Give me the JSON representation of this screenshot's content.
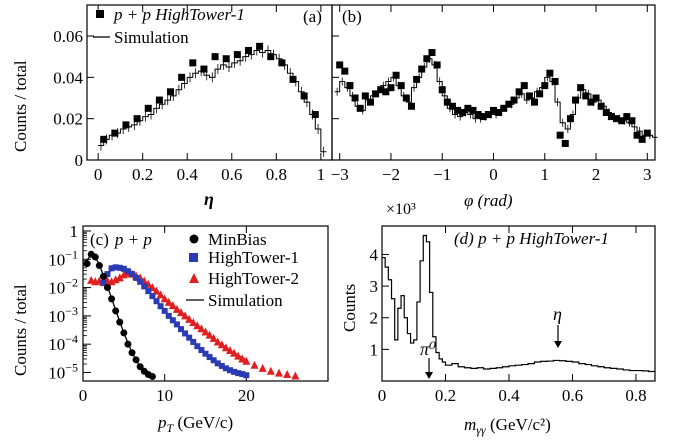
{
  "chart_data": [
    {
      "panel": "(a)",
      "type": "scatter",
      "xlabel": "η",
      "ylabel": "Counts / total",
      "xlim": [
        -0.05,
        1.05
      ],
      "ylim": [
        0,
        0.075
      ],
      "xticks": [
        0,
        0.2,
        0.4,
        0.6,
        0.8,
        1
      ],
      "xtick_labels": [
        "0",
        "0.2",
        "0.4",
        "0.6",
        "0.8",
        "1"
      ],
      "yticks": [
        0,
        0.02,
        0.04,
        0.06
      ],
      "ytick_labels": [
        "0",
        "0.02",
        "0.04",
        "0.06"
      ],
      "legend": [
        {
          "label": "p + p HighTower-1",
          "marker": "square"
        },
        {
          "label": "Simulation",
          "marker": "line"
        }
      ],
      "series": [
        {
          "name": "p + p HighTower-1",
          "style": "square",
          "x": [
            0.025,
            0.075,
            0.125,
            0.175,
            0.225,
            0.275,
            0.325,
            0.375,
            0.425,
            0.475,
            0.525,
            0.575,
            0.625,
            0.675,
            0.725,
            0.775,
            0.825,
            0.875,
            0.925,
            0.975
          ],
          "y": [
            0.01,
            0.013,
            0.017,
            0.02,
            0.025,
            0.029,
            0.033,
            0.04,
            0.047,
            0.044,
            0.05,
            0.049,
            0.051,
            0.053,
            0.055,
            0.05,
            0.047,
            0.039,
            0.031,
            0.022
          ]
        },
        {
          "name": "Simulation",
          "style": "histogram",
          "x": [
            0.0,
            0.025,
            0.05,
            0.075,
            0.1,
            0.125,
            0.15,
            0.175,
            0.2,
            0.225,
            0.25,
            0.275,
            0.3,
            0.325,
            0.35,
            0.375,
            0.4,
            0.425,
            0.45,
            0.475,
            0.5,
            0.525,
            0.55,
            0.575,
            0.6,
            0.625,
            0.65,
            0.675,
            0.7,
            0.725,
            0.75,
            0.775,
            0.8,
            0.825,
            0.85,
            0.875,
            0.9,
            0.925,
            0.95,
            0.975,
            1.0
          ],
          "y": [
            0.007,
            0.01,
            0.012,
            0.013,
            0.015,
            0.016,
            0.017,
            0.019,
            0.021,
            0.022,
            0.025,
            0.027,
            0.029,
            0.031,
            0.034,
            0.037,
            0.04,
            0.042,
            0.043,
            0.041,
            0.04,
            0.044,
            0.046,
            0.045,
            0.047,
            0.048,
            0.05,
            0.051,
            0.053,
            0.052,
            0.053,
            0.051,
            0.049,
            0.046,
            0.042,
            0.038,
            0.033,
            0.028,
            0.022,
            0.015,
            0.004
          ]
        }
      ],
      "annotations": [
        "(a)"
      ]
    },
    {
      "panel": "(b)",
      "type": "scatter",
      "xlabel": "φ (rad)",
      "xlim": [
        -3.15,
        3.15
      ],
      "ylim": [
        0,
        0.075
      ],
      "xticks": [
        -3,
        -2,
        -1,
        0,
        1,
        2,
        3
      ],
      "xtick_labels": [
        "−3",
        "−2",
        "−1",
        "0",
        "1",
        "2",
        "3"
      ],
      "series": [
        {
          "name": "p + p HighTower-1",
          "style": "square",
          "x": [
            -3.0,
            -2.9,
            -2.8,
            -2.7,
            -2.6,
            -2.5,
            -2.4,
            -2.3,
            -2.2,
            -2.1,
            -2.0,
            -1.9,
            -1.8,
            -1.7,
            -1.6,
            -1.5,
            -1.4,
            -1.3,
            -1.2,
            -1.1,
            -1.0,
            -0.9,
            -0.8,
            -0.7,
            -0.6,
            -0.5,
            -0.4,
            -0.3,
            -0.2,
            -0.1,
            0.0,
            0.1,
            0.2,
            0.3,
            0.4,
            0.5,
            0.6,
            0.7,
            0.8,
            0.9,
            1.0,
            1.1,
            1.2,
            1.3,
            1.4,
            1.5,
            1.6,
            1.7,
            1.8,
            1.9,
            2.0,
            2.1,
            2.2,
            2.3,
            2.4,
            2.5,
            2.6,
            2.7,
            2.8,
            2.9,
            3.0
          ],
          "y": [
            0.046,
            0.043,
            0.036,
            0.03,
            0.025,
            0.031,
            0.028,
            0.032,
            0.034,
            0.033,
            0.035,
            0.041,
            0.036,
            0.03,
            0.026,
            0.039,
            0.044,
            0.049,
            0.052,
            0.046,
            0.034,
            0.028,
            0.026,
            0.024,
            0.023,
            0.025,
            0.024,
            0.022,
            0.021,
            0.022,
            0.024,
            0.023,
            0.025,
            0.027,
            0.029,
            0.033,
            0.036,
            0.031,
            0.028,
            0.032,
            0.036,
            0.042,
            0.038,
            0.012,
            0.008,
            0.02,
            0.029,
            0.035,
            0.031,
            0.028,
            0.03,
            0.026,
            0.023,
            0.021,
            0.02,
            0.019,
            0.021,
            0.019,
            0.012,
            0.01,
            0.013
          ]
        },
        {
          "name": "Simulation",
          "style": "histogram",
          "x": [
            -3.1,
            -3.0,
            -2.9,
            -2.8,
            -2.7,
            -2.6,
            -2.5,
            -2.4,
            -2.3,
            -2.2,
            -2.1,
            -2.0,
            -1.9,
            -1.8,
            -1.7,
            -1.6,
            -1.5,
            -1.4,
            -1.3,
            -1.2,
            -1.1,
            -1.0,
            -0.9,
            -0.8,
            -0.7,
            -0.6,
            -0.5,
            -0.4,
            -0.3,
            -0.2,
            -0.1,
            0.0,
            0.1,
            0.2,
            0.3,
            0.4,
            0.5,
            0.6,
            0.7,
            0.8,
            0.9,
            1.0,
            1.1,
            1.2,
            1.3,
            1.4,
            1.5,
            1.6,
            1.7,
            1.8,
            1.9,
            2.0,
            2.1,
            2.2,
            2.3,
            2.4,
            2.5,
            2.6,
            2.7,
            2.8,
            2.9,
            3.0,
            3.1
          ],
          "y": [
            0.033,
            0.038,
            0.035,
            0.031,
            0.026,
            0.024,
            0.029,
            0.031,
            0.033,
            0.036,
            0.038,
            0.04,
            0.036,
            0.031,
            0.028,
            0.035,
            0.04,
            0.045,
            0.049,
            0.046,
            0.038,
            0.031,
            0.025,
            0.022,
            0.021,
            0.023,
            0.022,
            0.02,
            0.02,
            0.021,
            0.022,
            0.022,
            0.024,
            0.026,
            0.027,
            0.03,
            0.032,
            0.029,
            0.03,
            0.033,
            0.035,
            0.04,
            0.038,
            0.028,
            0.018,
            0.015,
            0.022,
            0.03,
            0.034,
            0.032,
            0.028,
            0.029,
            0.026,
            0.023,
            0.021,
            0.02,
            0.019,
            0.018,
            0.016,
            0.014,
            0.012,
            0.012,
            0.011
          ]
        }
      ],
      "annotations": [
        "(b)"
      ]
    },
    {
      "panel": "(c)",
      "type": "scatter",
      "log_y": true,
      "xlabel": "p_T (GeV/c)",
      "ylabel": "Counts / total",
      "xlim": [
        0,
        30
      ],
      "ylim": [
        5e-06,
        1.5
      ],
      "xticks": [
        0,
        10,
        20
      ],
      "xtick_labels": [
        "0",
        "10",
        "20"
      ],
      "yticks": [
        1e-05,
        0.0001,
        0.001,
        0.01,
        0.1,
        1
      ],
      "ytick_labels": [
        "10⁻⁵",
        "10⁻⁴",
        "10⁻³",
        "10⁻²",
        "10⁻¹",
        "1"
      ],
      "legend_placement": "top-right",
      "legend": [
        {
          "label": "MinBias",
          "marker": "circle",
          "color": "#000000"
        },
        {
          "label": "HighTower-1",
          "marker": "square",
          "color": "#2b3bb3"
        },
        {
          "label": "HighTower-2",
          "marker": "triangle",
          "color": "#e02020"
        },
        {
          "label": "Simulation",
          "marker": "line",
          "color": "#000000"
        }
      ],
      "series": [
        {
          "name": "MinBias",
          "style": "circle",
          "color": "#000000",
          "x": [
            0.5,
            1.0,
            1.5,
            2.0,
            2.5,
            3.0,
            3.5,
            4.0,
            4.5,
            5.0,
            5.5,
            6.0,
            6.5,
            7.0,
            7.5,
            8.0,
            8.5
          ],
          "y": [
            0.07,
            0.15,
            0.12,
            0.06,
            0.025,
            0.01,
            0.004,
            0.0015,
            0.0006,
            0.00025,
            0.0001,
            5e-05,
            2.8e-05,
            1.6e-05,
            1.1e-05,
            8.5e-06,
            7.2e-06
          ]
        },
        {
          "name": "HighTower-1",
          "style": "square",
          "color": "#2b3bb3",
          "x": [
            2.5,
            3.0,
            3.5,
            4.0,
            4.5,
            5.0,
            5.5,
            6.0,
            6.5,
            7.0,
            7.5,
            8.0,
            8.5,
            9.0,
            9.5,
            10.0,
            10.5,
            11.0,
            11.5,
            12.0,
            12.5,
            13.0,
            13.5,
            14.0,
            14.5,
            15.0,
            15.5,
            16.0,
            16.5,
            17.0,
            17.5,
            18.0,
            18.5,
            19.0,
            19.5,
            20.0
          ],
          "y": [
            0.015,
            0.03,
            0.048,
            0.052,
            0.05,
            0.046,
            0.038,
            0.03,
            0.022,
            0.016,
            0.011,
            0.0075,
            0.005,
            0.0033,
            0.0022,
            0.0015,
            0.001,
            0.0007,
            0.0005,
            0.00034,
            0.00024,
            0.00017,
            0.00012,
            8.5e-05,
            6.2e-05,
            4.6e-05,
            3.5e-05,
            2.7e-05,
            2.1e-05,
            1.7e-05,
            1.4e-05,
            1.2e-05,
            1.05e-05,
            9.5e-06,
            8.8e-06,
            8e-06
          ]
        },
        {
          "name": "HighTower-2",
          "style": "triangle",
          "color": "#e02020",
          "x": [
            1.0,
            1.5,
            2.0,
            2.5,
            3.0,
            3.5,
            4.0,
            4.5,
            5.0,
            5.5,
            6.0,
            6.5,
            7.0,
            7.5,
            8.0,
            8.5,
            9.0,
            9.5,
            10.0,
            10.5,
            11.0,
            11.5,
            12.0,
            12.5,
            13.0,
            13.5,
            14.0,
            14.5,
            15.0,
            15.5,
            16.0,
            16.5,
            17.0,
            17.5,
            18.0,
            18.5,
            19.0,
            19.5,
            20.0,
            21.0,
            22.0,
            23.0,
            24.0,
            25.0,
            26.0
          ],
          "y": [
            0.018,
            0.016,
            0.017,
            0.015,
            0.017,
            0.016,
            0.019,
            0.022,
            0.028,
            0.032,
            0.03,
            0.026,
            0.022,
            0.017,
            0.013,
            0.01,
            0.0075,
            0.0055,
            0.004,
            0.003,
            0.0023,
            0.0017,
            0.0013,
            0.001,
            0.00075,
            0.00058,
            0.00045,
            0.00035,
            0.00027,
            0.00021,
            0.00016,
            0.00012,
            9.5e-05,
            7.5e-05,
            6e-05,
            4.8e-05,
            3.8e-05,
            3e-05,
            2.5e-05,
            1.8e-05,
            1.4e-05,
            1.1e-05,
            9.5e-06,
            8.5e-06,
            7.5e-06
          ]
        }
      ],
      "simulation_curves": [
        {
          "name": "Simulation (MinBias)",
          "color": "#000000",
          "x": [
            0.5,
            1,
            1.5,
            2,
            3,
            4,
            5,
            6,
            7,
            8
          ],
          "y": [
            0.09,
            0.16,
            0.12,
            0.065,
            0.011,
            0.0016,
            0.00025,
            5e-05,
            1.6e-05,
            8e-06
          ]
        },
        {
          "name": "Simulation (HighTower-1)",
          "color": "#2b3bb3",
          "x": [
            2.5,
            3,
            4,
            5,
            6,
            8,
            10,
            12,
            14,
            16,
            18,
            20
          ],
          "y": [
            0.012,
            0.03,
            0.055,
            0.048,
            0.031,
            0.008,
            0.0016,
            0.00035,
            8.5e-05,
            2.7e-05,
            1.2e-05,
            7.8e-06
          ]
        },
        {
          "name": "Simulation (HighTower-2)",
          "color": "#e02020",
          "x": [
            3,
            4,
            5,
            5.5,
            6,
            8,
            10,
            12,
            14,
            16,
            18,
            20
          ],
          "y": [
            0.01,
            0.018,
            0.03,
            0.034,
            0.032,
            0.014,
            0.0042,
            0.0014,
            0.00047,
            0.00016,
            6.2e-05,
            2.8e-05
          ]
        }
      ],
      "annotations": [
        "(c)",
        "p + p"
      ]
    },
    {
      "panel": "(d)",
      "type": "line",
      "xlabel": "m_γγ (GeV/c²)",
      "ylabel": "Counts",
      "multiplier": "×10³",
      "xlim": [
        0,
        0.86
      ],
      "ylim": [
        0,
        4.9
      ],
      "xticks": [
        0,
        0.2,
        0.4,
        0.6,
        0.8
      ],
      "xtick_labels": [
        "0",
        "0.2",
        "0.4",
        "0.6",
        "0.8"
      ],
      "yticks": [
        1,
        2,
        3,
        4
      ],
      "ytick_labels": [
        "1",
        "2",
        "3",
        "4"
      ],
      "series": [
        {
          "name": "p + p HighTower-1",
          "style": "histogram",
          "x": [
            0.0,
            0.01,
            0.02,
            0.03,
            0.04,
            0.05,
            0.06,
            0.07,
            0.08,
            0.09,
            0.1,
            0.11,
            0.12,
            0.13,
            0.14,
            0.15,
            0.16,
            0.17,
            0.18,
            0.19,
            0.2,
            0.22,
            0.24,
            0.26,
            0.28,
            0.3,
            0.32,
            0.34,
            0.36,
            0.38,
            0.4,
            0.42,
            0.44,
            0.46,
            0.48,
            0.5,
            0.52,
            0.54,
            0.56,
            0.58,
            0.6,
            0.62,
            0.64,
            0.66,
            0.68,
            0.7,
            0.72,
            0.74,
            0.76,
            0.78,
            0.8,
            0.82,
            0.84
          ],
          "y": [
            3.9,
            3.6,
            3.2,
            2.6,
            1.3,
            2.3,
            2.7,
            2.0,
            1.5,
            1.2,
            1.3,
            2.5,
            3.8,
            4.6,
            4.4,
            2.8,
            1.4,
            0.9,
            0.7,
            0.6,
            0.5,
            0.55,
            0.45,
            0.42,
            0.4,
            0.42,
            0.38,
            0.4,
            0.42,
            0.45,
            0.48,
            0.5,
            0.52,
            0.55,
            0.6,
            0.62,
            0.63,
            0.65,
            0.64,
            0.62,
            0.6,
            0.55,
            0.52,
            0.48,
            0.45,
            0.42,
            0.4,
            0.38,
            0.35,
            0.33,
            0.33,
            0.32,
            0.3
          ]
        }
      ],
      "annotations": [
        {
          "text": "π⁰",
          "x": 0.135,
          "y": 0.9
        },
        {
          "text": "η",
          "x": 0.55,
          "y": 1.3
        },
        {
          "text": "(d)  p + p HighTower-1"
        }
      ]
    }
  ],
  "labels": {
    "a_legend_1": "p + p HighTower-1",
    "a_legend_2": "Simulation",
    "a_panel": "(a)",
    "b_panel": "(b)",
    "a_xlabel": "η",
    "b_xlabel": "φ (rad)",
    "top_ylabel": "Counts / total",
    "c_panel": "(c)",
    "c_pp": "p + p",
    "c_legend_1": "MinBias",
    "c_legend_2": "HighTower-1",
    "c_legend_3": "HighTower-2",
    "c_legend_4": "Simulation",
    "c_ylabel": "Counts / total",
    "c_xlabel": "p",
    "c_xlabel_sub": "T",
    "c_xlabel_rest": " (GeV/c)",
    "d_title": "(d)  p + p HighTower-1",
    "d_ylabel": "Counts",
    "d_multiplier": "×10³",
    "d_xlabel": "m",
    "d_xlabel_sub": "γγ",
    "d_xlabel_rest": " (GeV/c²)",
    "d_pi0": "π⁰",
    "d_eta": "η"
  }
}
